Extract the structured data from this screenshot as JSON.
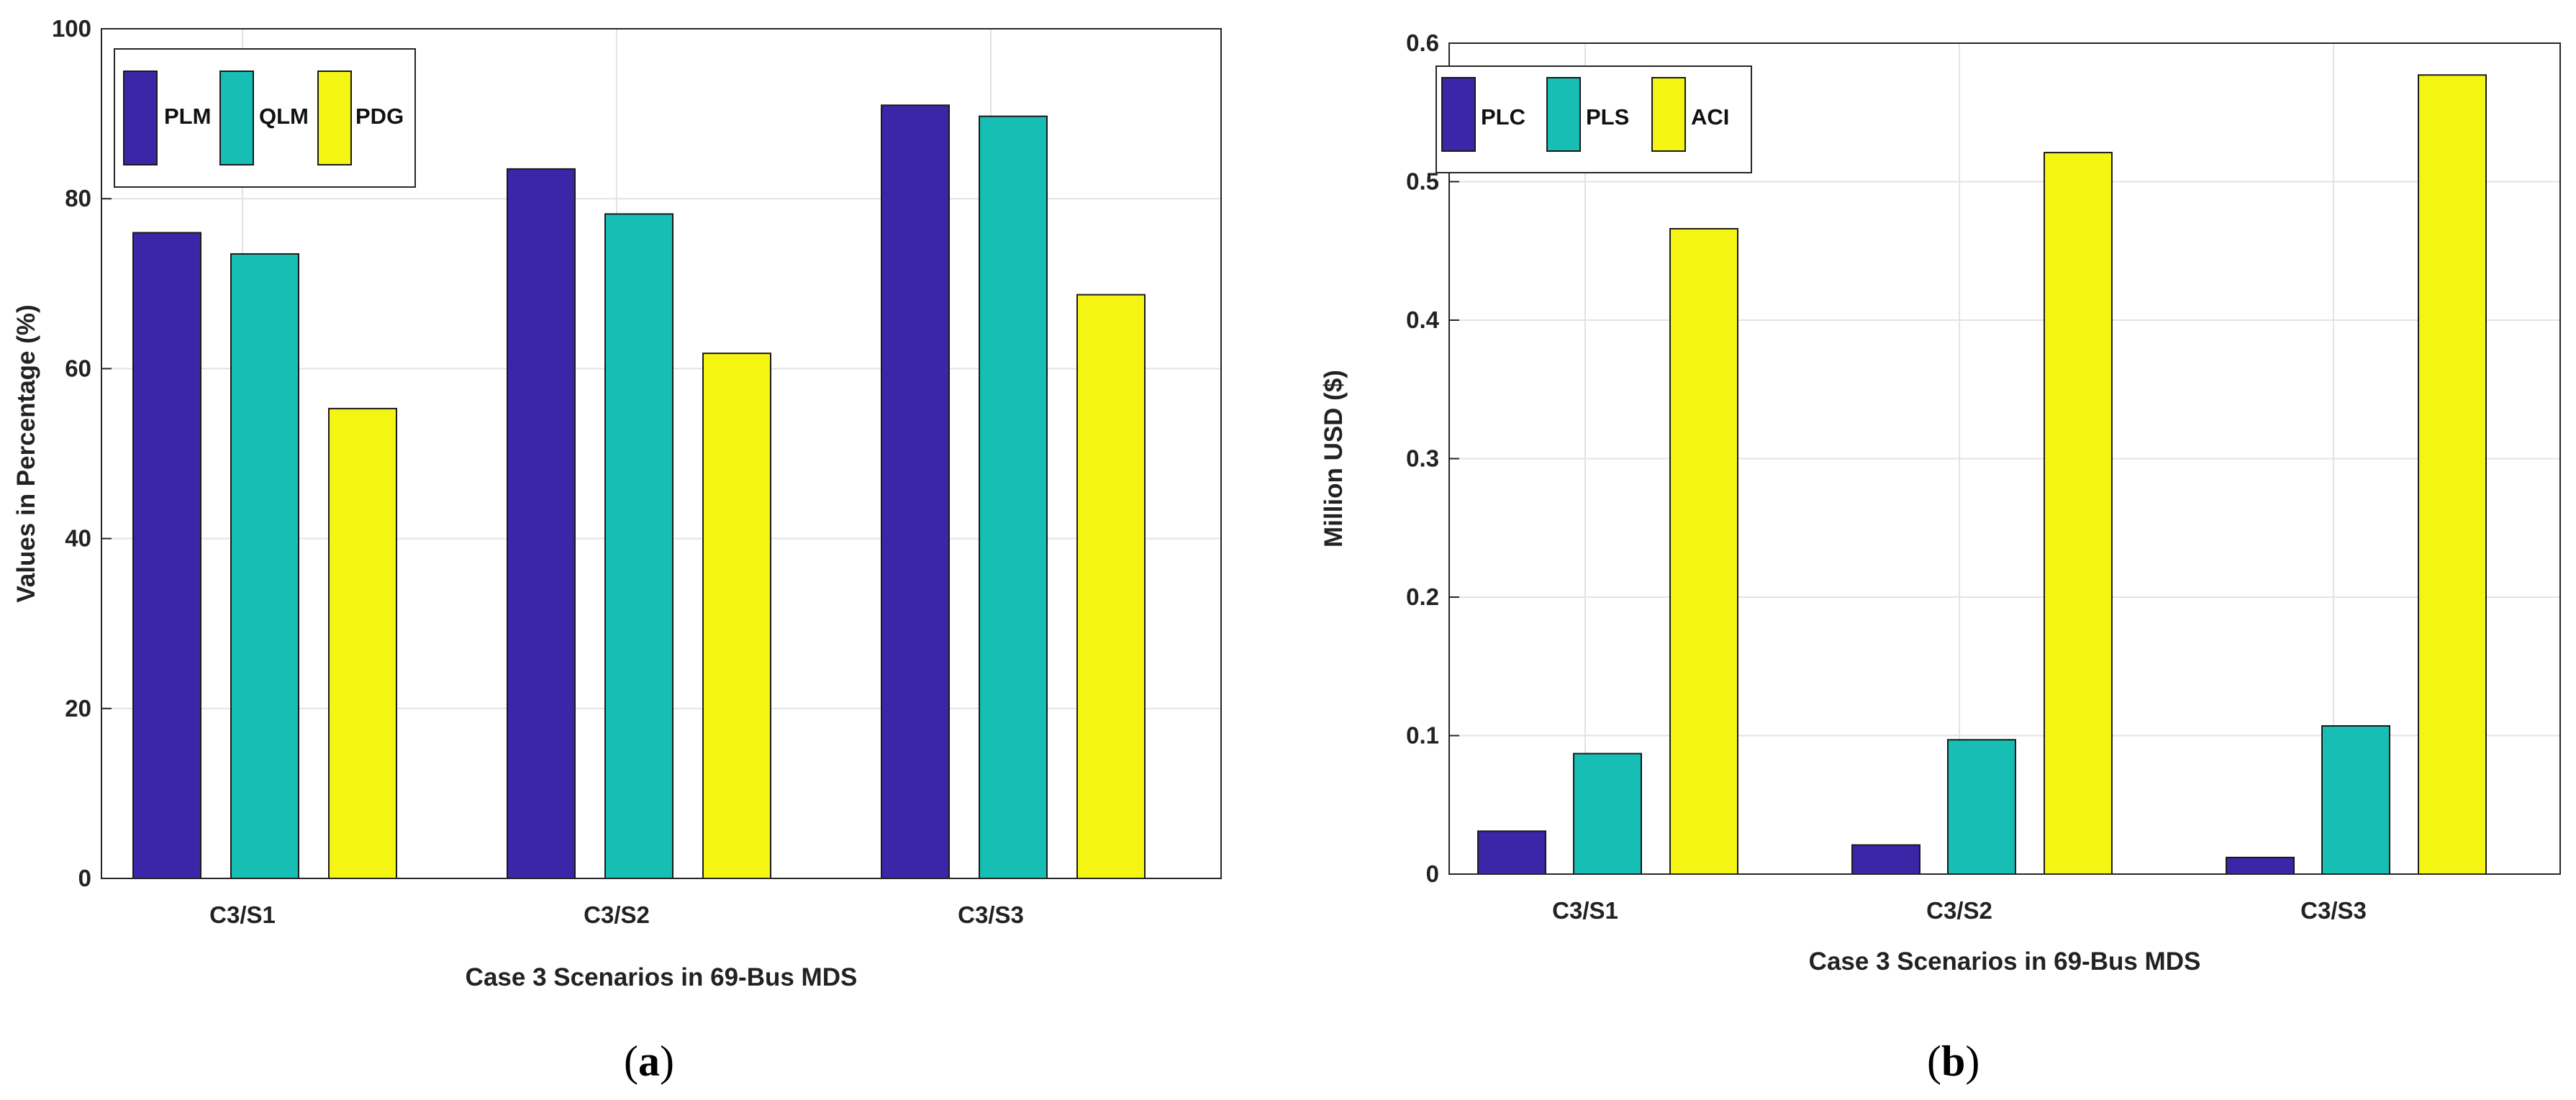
{
  "chart_data": [
    {
      "type": "bar",
      "panel_label": "a",
      "title": "",
      "categories": [
        "C3/S1",
        "C3/S2",
        "C3/S3"
      ],
      "series": [
        {
          "name": "PLM",
          "color": "#3A26A6",
          "values": [
            76,
            83.5,
            91
          ]
        },
        {
          "name": "QLM",
          "color": "#17BEB4",
          "values": [
            73.5,
            78.2,
            89.7
          ]
        },
        {
          "name": "PDG",
          "color": "#F5F514",
          "values": [
            55.3,
            61.8,
            68.7
          ]
        }
      ],
      "xlabel": "Case 3 Scenarios in 69-Bus MDS",
      "ylabel": "Values in Percentage (%)",
      "ylim": [
        0,
        100
      ],
      "yticks": [
        "0",
        "20",
        "40",
        "60",
        "80",
        "100"
      ],
      "grid": true,
      "legend_position": "top-left"
    },
    {
      "type": "bar",
      "panel_label": "b",
      "title": "",
      "categories": [
        "C3/S1",
        "C3/S2",
        "C3/S3"
      ],
      "series": [
        {
          "name": "PLC",
          "color": "#3A26A6",
          "values": [
            0.031,
            0.021,
            0.012
          ]
        },
        {
          "name": "PLS",
          "color": "#17BEB4",
          "values": [
            0.087,
            0.097,
            0.107
          ]
        },
        {
          "name": "ACI",
          "color": "#F5F514",
          "values": [
            0.466,
            0.521,
            0.577
          ]
        }
      ],
      "xlabel": "Case 3 Scenarios in 69-Bus MDS",
      "ylabel": "Million USD ($)",
      "ylim": [
        0,
        0.6
      ],
      "yticks": [
        "0",
        "0.1",
        "0.2",
        "0.3",
        "0.4",
        "0.5",
        "0.6"
      ],
      "grid": true,
      "legend_position": "top-left"
    }
  ]
}
